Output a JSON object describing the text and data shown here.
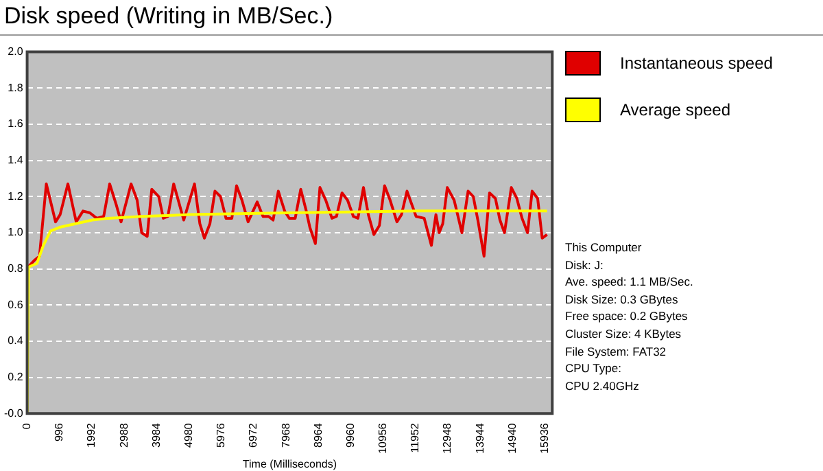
{
  "chart_data": {
    "type": "line",
    "title": "Disk speed (Writing in MB/Sec.)",
    "xlabel": "Time (Milliseconds)",
    "xlim": [
      0,
      16160
    ],
    "xticks": [
      0,
      996,
      1992,
      2988,
      3984,
      4980,
      5976,
      6972,
      7968,
      8964,
      9960,
      10956,
      11952,
      12948,
      13944,
      14940,
      15936
    ],
    "ylim": [
      0,
      2
    ],
    "yticks": [
      {
        "value": 0,
        "label": "-0.0"
      },
      0.2,
      0.4,
      0.6,
      0.8,
      {
        "value": 1,
        "label": "1.0"
      },
      1.2,
      1.4,
      1.6,
      1.8,
      {
        "value": 2,
        "label": "2.0"
      }
    ],
    "grid": "y",
    "legend": "top right",
    "marker": "none",
    "line_style": "solid",
    "series": [
      {
        "name": "Instantaneous speed",
        "color": "#e00000",
        "x": [
          30,
          240,
          380,
          590,
          875,
          1015,
          1255,
          1510,
          1720,
          1930,
          2140,
          2355,
          2540,
          2750,
          2890,
          3200,
          3385,
          3525,
          3695,
          3835,
          4050,
          4190,
          4330,
          4510,
          4820,
          5150,
          5315,
          5455,
          5625,
          5780,
          5950,
          6120,
          6300,
          6445,
          6610,
          6800,
          7080,
          7260,
          7430,
          7570,
          7730,
          7925,
          8065,
          8250,
          8420,
          8590,
          8700,
          8870,
          9010,
          9190,
          9380,
          9520,
          9690,
          9860,
          10040,
          10180,
          10350,
          10500,
          10670,
          10840,
          11000,
          11170,
          11380,
          11520,
          11690,
          11830,
          11970,
          12220,
          12440,
          12580,
          12680,
          12790,
          12930,
          13140,
          13380,
          13570,
          13730,
          13870,
          14060,
          14230,
          14410,
          14550,
          14690,
          14900,
          15070,
          15230,
          15400,
          15540,
          15710,
          15850,
          16000
        ],
        "values": [
          0.81,
          0.85,
          0.87,
          1.27,
          1.06,
          1.1,
          1.27,
          1.06,
          1.12,
          1.11,
          1.08,
          1.09,
          1.27,
          1.15,
          1.06,
          1.27,
          1.18,
          1.0,
          0.98,
          1.24,
          1.2,
          1.08,
          1.09,
          1.27,
          1.07,
          1.27,
          1.05,
          0.97,
          1.05,
          1.23,
          1.2,
          1.08,
          1.08,
          1.26,
          1.18,
          1.06,
          1.17,
          1.09,
          1.09,
          1.07,
          1.23,
          1.12,
          1.08,
          1.08,
          1.24,
          1.12,
          1.03,
          0.94,
          1.25,
          1.18,
          1.08,
          1.09,
          1.22,
          1.18,
          1.09,
          1.08,
          1.25,
          1.1,
          0.99,
          1.04,
          1.26,
          1.18,
          1.06,
          1.1,
          1.23,
          1.16,
          1.09,
          1.08,
          0.93,
          1.1,
          1.0,
          1.05,
          1.25,
          1.18,
          1.0,
          1.23,
          1.2,
          1.07,
          0.87,
          1.22,
          1.19,
          1.07,
          1.0,
          1.25,
          1.19,
          1.08,
          1.0,
          1.23,
          1.19,
          0.97,
          0.99
        ]
      },
      {
        "name": "Average speed",
        "color": "#ffff00",
        "x": [
          0,
          40,
          300,
          500,
          720,
          1000,
          1500,
          2000,
          2500,
          3500,
          5000,
          8000,
          12000,
          16000
        ],
        "values": [
          0,
          0.81,
          0.83,
          0.93,
          1.01,
          1.03,
          1.05,
          1.07,
          1.08,
          1.09,
          1.1,
          1.11,
          1.12,
          1.12
        ]
      }
    ],
    "annotations": [
      "This Computer",
      "Disk: J:",
      "Ave. speed: 1.1 MB/Sec.",
      "Disk Size: 0.3 GBytes",
      "Free space: 0.2 GBytes",
      "Cluster Size: 4 KBytes",
      "File System: FAT32",
      "CPU Type:",
      "CPU 2.40GHz"
    ]
  }
}
